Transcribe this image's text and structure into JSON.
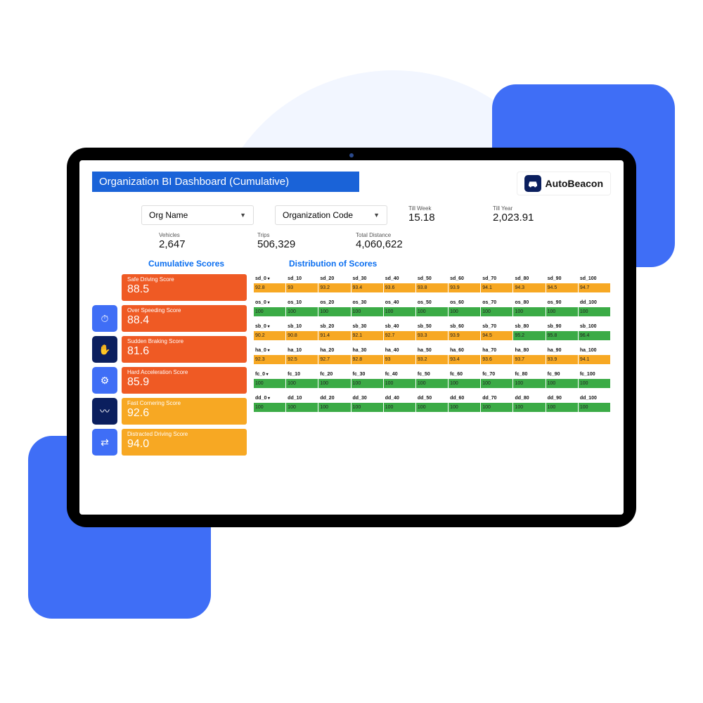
{
  "colors": {
    "accent_blue": "#3f6ef6",
    "title_bar": "#1a63d8",
    "light_blob": "#f2f6ff",
    "orange": "#ef5a24",
    "amber": "#f7a823",
    "green": "#3bab46",
    "navy": "#0b1f5e",
    "link_blue": "#0a6ef0"
  },
  "page": {
    "title": "Organization BI Dashboard (Cumulative)",
    "brand": "AutoBeacon"
  },
  "filters": {
    "org_name": {
      "label": "Org Name"
    },
    "org_code": {
      "label": "Organization Code"
    }
  },
  "top_stats": {
    "till_week": {
      "label": "Till Week",
      "value": "15.18"
    },
    "till_year": {
      "label": "Till Year",
      "value": "2,023.91"
    }
  },
  "metrics": {
    "vehicles": {
      "label": "Vehicles",
      "value": "2,647"
    },
    "trips": {
      "label": "Trips",
      "value": "506,329"
    },
    "distance": {
      "label": "Total Distance",
      "value": "4,060,622"
    }
  },
  "section_headers": {
    "cumulative": "Cumulative Scores",
    "distribution": "Distribution of Scores"
  },
  "scores": [
    {
      "key": "sd",
      "label": "Safe Driving Score",
      "value": "88.5",
      "card_color": "#ef5a24",
      "icon_bg": null,
      "icon": ""
    },
    {
      "key": "os",
      "label": "Over Speeding Score",
      "value": "88.4",
      "card_color": "#ef5a24",
      "icon_bg": "#3f6ef6",
      "icon": "⏱"
    },
    {
      "key": "sb",
      "label": "Sudden Braking Score",
      "value": "81.6",
      "card_color": "#ef5a24",
      "icon_bg": "#0b1f5e",
      "icon": "✋"
    },
    {
      "key": "ha",
      "label": "Hard Acceleration Score",
      "value": "85.9",
      "card_color": "#ef5a24",
      "icon_bg": "#3f6ef6",
      "icon": "⚙"
    },
    {
      "key": "fc",
      "label": "Fast Cornering Score",
      "value": "92.6",
      "card_color": "#f7a823",
      "icon_bg": "#0b1f5e",
      "icon": "〰"
    },
    {
      "key": "dd",
      "label": "Distracted Driving Score",
      "value": "94.0",
      "card_color": "#f7a823",
      "icon_bg": "#3f6ef6",
      "icon": "⇄"
    }
  ],
  "distribution": {
    "buckets": [
      "0",
      "10",
      "20",
      "30",
      "40",
      "50",
      "60",
      "70",
      "80",
      "90",
      "100"
    ],
    "rows": [
      {
        "prefix": "sd",
        "values": [
          "92.8",
          "93",
          "93.2",
          "93.4",
          "93.6",
          "93.8",
          "93.9",
          "94.1",
          "94.3",
          "94.5",
          "94.7"
        ],
        "colors": [
          "#f7a823",
          "#f7a823",
          "#f7a823",
          "#f7a823",
          "#f7a823",
          "#f7a823",
          "#f7a823",
          "#f7a823",
          "#f7a823",
          "#f7a823",
          "#f7a823"
        ],
        "last_header_override": "sd_100"
      },
      {
        "prefix": "os",
        "values": [
          "100",
          "100",
          "100",
          "100",
          "100",
          "100",
          "100",
          "100",
          "100",
          "100",
          "100"
        ],
        "colors": [
          "#3bab46",
          "#3bab46",
          "#3bab46",
          "#3bab46",
          "#3bab46",
          "#3bab46",
          "#3bab46",
          "#3bab46",
          "#3bab46",
          "#3bab46",
          "#3bab46"
        ],
        "last_header_override": "dd_100"
      },
      {
        "prefix": "sb",
        "values": [
          "90.2",
          "90.8",
          "91.4",
          "92.1",
          "92.7",
          "93.3",
          "93.9",
          "94.5",
          "95.2",
          "95.8",
          "96.4"
        ],
        "colors": [
          "#f7a823",
          "#f7a823",
          "#f7a823",
          "#f7a823",
          "#f7a823",
          "#f7a823",
          "#f7a823",
          "#f7a823",
          "#3bab46",
          "#3bab46",
          "#3bab46"
        ],
        "last_header_override": "sb_100"
      },
      {
        "prefix": "ha",
        "values": [
          "92.3",
          "92.5",
          "92.7",
          "92.8",
          "93",
          "93.2",
          "93.4",
          "93.6",
          "93.7",
          "93.9",
          "94.1"
        ],
        "colors": [
          "#f7a823",
          "#f7a823",
          "#f7a823",
          "#f7a823",
          "#f7a823",
          "#f7a823",
          "#f7a823",
          "#f7a823",
          "#f7a823",
          "#f7a823",
          "#f7a823"
        ],
        "last_header_override": "ha_100"
      },
      {
        "prefix": "fc",
        "values": [
          "100",
          "100",
          "100",
          "100",
          "100",
          "100",
          "100",
          "100",
          "100",
          "100",
          "100"
        ],
        "colors": [
          "#3bab46",
          "#3bab46",
          "#3bab46",
          "#3bab46",
          "#3bab46",
          "#3bab46",
          "#3bab46",
          "#3bab46",
          "#3bab46",
          "#3bab46",
          "#3bab46"
        ],
        "last_header_override": "fc_100"
      },
      {
        "prefix": "dd",
        "values": [
          "100",
          "100",
          "100",
          "100",
          "100",
          "100",
          "100",
          "100",
          "100",
          "100",
          "100"
        ],
        "colors": [
          "#3bab46",
          "#3bab46",
          "#3bab46",
          "#3bab46",
          "#3bab46",
          "#3bab46",
          "#3bab46",
          "#3bab46",
          "#3bab46",
          "#3bab46",
          "#3bab46"
        ],
        "last_header_override": "dd_100"
      }
    ]
  }
}
